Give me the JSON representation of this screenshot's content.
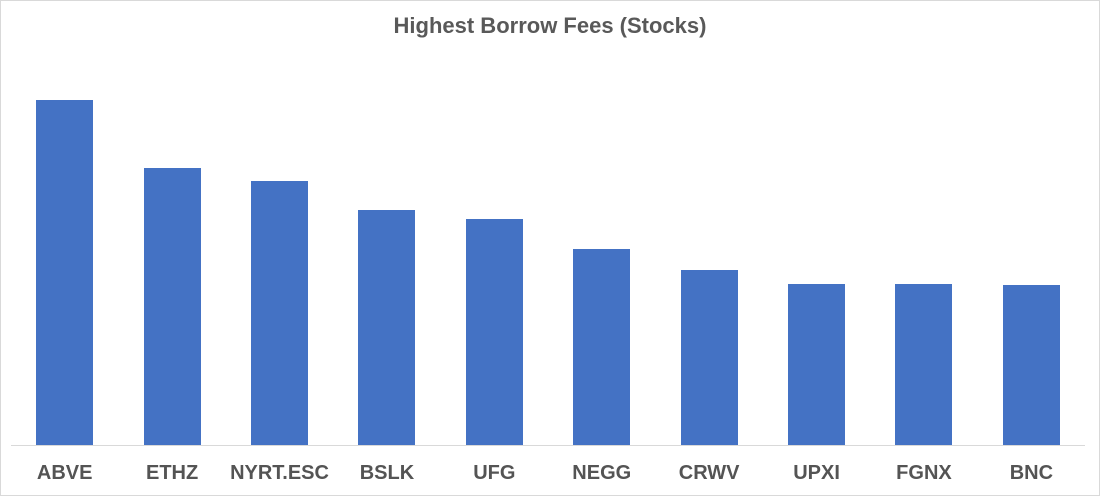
{
  "chart_data": {
    "type": "bar",
    "title": "Highest Borrow Fees (Stocks)",
    "categories": [
      "ABVE",
      "ETHZ",
      "NYRT.ESC",
      "BSLK",
      "UFG",
      "NEGG",
      "CRWV",
      "UPXI",
      "FGNX",
      "BNC"
    ],
    "values": [
      345,
      277,
      264,
      235,
      226,
      196,
      175,
      161,
      161,
      160
    ],
    "values_note": "y-axis is unlabeled in the chart; values are relative units proportional to bar heights",
    "xlabel": "",
    "ylabel": "",
    "ylim": [
      0,
      384
    ],
    "gridlines": false,
    "legend": "none",
    "y_axis_visible": false,
    "colors": {
      "bar": "#4472C4",
      "title_text": "#595959",
      "tick_text": "#545454",
      "axis_line": "#D9D9D9",
      "frame_border": "#D9D9D9",
      "background": "#FFFFFF"
    }
  }
}
